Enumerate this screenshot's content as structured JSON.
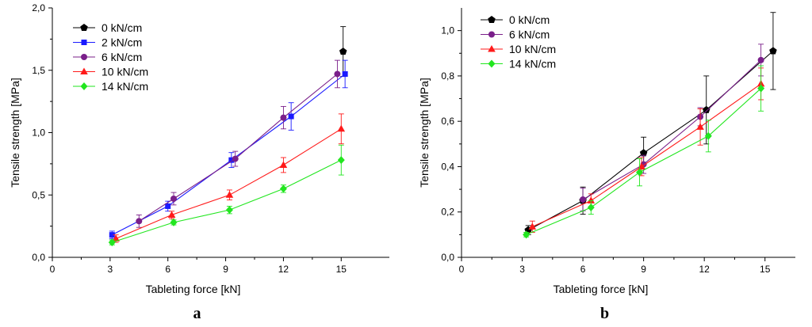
{
  "chart_data": [
    {
      "type": "line",
      "panel_label": "a",
      "xlabel": "Tableting force [kN]",
      "ylabel": "Tensile strength [MPa]",
      "xlim": [
        0,
        17.5
      ],
      "ylim": [
        0,
        2.0
      ],
      "x_ticks": [
        0,
        3,
        6,
        9,
        12,
        15
      ],
      "x_tick_labels": [
        "0",
        "3",
        "6",
        "9",
        "12",
        "15"
      ],
      "y_ticks": [
        0,
        0.5,
        1.0,
        1.5,
        2.0
      ],
      "y_tick_labels": [
        "0,0",
        "0,5",
        "1,0",
        "1,5",
        "2,0"
      ],
      "legend_position": "top-left",
      "series": [
        {
          "name": "0 kN/cm",
          "color": "#000000",
          "marker": "pentagon",
          "x": [
            15.1
          ],
          "y": [
            1.65
          ],
          "err": [
            0.2
          ]
        },
        {
          "name": "2 kN/cm",
          "color": "#1a1aff",
          "marker": "square",
          "x": [
            3.1,
            6.0,
            9.3,
            12.4,
            15.2
          ],
          "y": [
            0.18,
            0.41,
            0.78,
            1.13,
            1.47
          ],
          "err": [
            0.03,
            0.04,
            0.06,
            0.11,
            0.11
          ]
        },
        {
          "name": "6 kN/cm",
          "color": "#7a1f8a",
          "marker": "circle",
          "x": [
            4.5,
            6.3,
            9.5,
            12.0,
            14.8
          ],
          "y": [
            0.29,
            0.47,
            0.79,
            1.12,
            1.47
          ],
          "err": [
            0.05,
            0.05,
            0.06,
            0.09,
            0.11
          ]
        },
        {
          "name": "10 kN/cm",
          "color": "#ff1a1a",
          "marker": "triangle",
          "x": [
            3.3,
            6.2,
            9.2,
            12.0,
            15.0
          ],
          "y": [
            0.15,
            0.34,
            0.5,
            0.74,
            1.03
          ],
          "err": [
            0.03,
            0.03,
            0.04,
            0.06,
            0.12
          ]
        },
        {
          "name": "14 kN/cm",
          "color": "#22e61f",
          "marker": "diamond",
          "x": [
            3.1,
            6.3,
            9.2,
            12.0,
            15.0
          ],
          "y": [
            0.12,
            0.28,
            0.38,
            0.55,
            0.78
          ],
          "err": [
            0.02,
            0.02,
            0.03,
            0.03,
            0.12
          ]
        }
      ]
    },
    {
      "type": "line",
      "panel_label": "b",
      "xlabel": "Tableting force [kN]",
      "ylabel": "Tensile strength [MPa]",
      "xlim": [
        0,
        16.5
      ],
      "ylim": [
        0,
        1.1
      ],
      "x_ticks": [
        0,
        3,
        6,
        9,
        12,
        15
      ],
      "x_tick_labels": [
        "0",
        "3",
        "6",
        "9",
        "12",
        "15"
      ],
      "y_ticks": [
        0,
        0.2,
        0.4,
        0.6,
        0.8,
        1.0
      ],
      "y_tick_labels": [
        "0,0",
        "0,2",
        "0,4",
        "0,6",
        "0,8",
        "1,0"
      ],
      "legend_position": "top-left",
      "series": [
        {
          "name": "0 kN/cm",
          "color": "#000000",
          "marker": "pentagon",
          "x": [
            3.3,
            6.0,
            9.0,
            12.1,
            15.4
          ],
          "y": [
            0.12,
            0.25,
            0.46,
            0.65,
            0.91
          ],
          "err": [
            0.02,
            0.06,
            0.07,
            0.15,
            0.17
          ]
        },
        {
          "name": "6 kN/cm",
          "color": "#7a1f8a",
          "marker": "circle",
          "x": [
            6.0,
            9.0,
            11.8,
            14.8
          ],
          "y": [
            0.255,
            0.41,
            0.62,
            0.87
          ],
          "err": [
            0.05,
            0.04,
            0.04,
            0.07
          ]
        },
        {
          "name": "10 kN/cm",
          "color": "#ff1a1a",
          "marker": "triangle",
          "x": [
            3.5,
            6.4,
            8.9,
            11.8,
            14.8
          ],
          "y": [
            0.135,
            0.25,
            0.4,
            0.575,
            0.765
          ],
          "err": [
            0.025,
            0.03,
            0.04,
            0.08,
            0.07
          ]
        },
        {
          "name": "14 kN/cm",
          "color": "#22e61f",
          "marker": "diamond",
          "x": [
            3.2,
            6.4,
            8.8,
            12.2,
            14.8
          ],
          "y": [
            0.1,
            0.22,
            0.375,
            0.535,
            0.745
          ],
          "err": [
            0.01,
            0.03,
            0.06,
            0.07,
            0.1
          ]
        }
      ]
    }
  ]
}
